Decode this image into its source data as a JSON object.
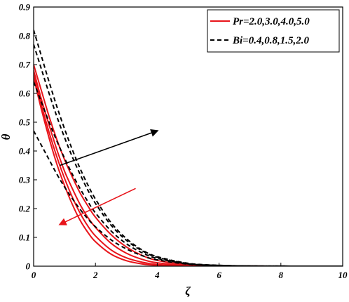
{
  "chart_data": {
    "type": "line",
    "title": "",
    "xlabel": "ζ",
    "ylabel": "θ",
    "xlim": [
      0,
      10
    ],
    "ylim": [
      0,
      0.9
    ],
    "x_ticks": [
      "0",
      "2",
      "4",
      "6",
      "8",
      "10"
    ],
    "y_ticks": [
      "0",
      "0.1",
      "0.2",
      "0.3",
      "0.4",
      "0.5",
      "0.6",
      "0.7",
      "0.8",
      "0.9"
    ],
    "grid": false,
    "legend": {
      "position": "top-right",
      "entries": [
        {
          "label": "Pr=2.0,3.0,4.0,5.0",
          "style": "solid",
          "color": "#e8141a"
        },
        {
          "label": "Bi=0.4,0.8,1.5,2.0",
          "style": "dashed",
          "color": "#000000"
        }
      ]
    },
    "x": [
      0,
      0.25,
      0.5,
      0.75,
      1,
      1.25,
      1.5,
      1.75,
      2,
      2.5,
      3,
      3.5,
      4,
      5,
      6,
      7,
      8,
      10
    ],
    "series": [
      {
        "group": "Pr",
        "param": "2.0",
        "style": "solid",
        "color": "#e8141a",
        "values": [
          0.7,
          0.61,
          0.52,
          0.44,
          0.37,
          0.31,
          0.255,
          0.21,
          0.17,
          0.11,
          0.067,
          0.038,
          0.02,
          0.005,
          0.0012,
          0.0003,
          0.0001,
          0
        ]
      },
      {
        "group": "Pr",
        "param": "3.0",
        "style": "solid",
        "color": "#e8141a",
        "values": [
          0.68,
          0.58,
          0.49,
          0.405,
          0.33,
          0.27,
          0.215,
          0.17,
          0.135,
          0.08,
          0.045,
          0.024,
          0.012,
          0.0025,
          0.0005,
          0.0001,
          0,
          0
        ]
      },
      {
        "group": "Pr",
        "param": "4.0",
        "style": "solid",
        "color": "#e8141a",
        "values": [
          0.665,
          0.56,
          0.465,
          0.38,
          0.305,
          0.24,
          0.185,
          0.14,
          0.105,
          0.057,
          0.029,
          0.014,
          0.006,
          0.001,
          0.0002,
          0,
          0,
          0
        ]
      },
      {
        "group": "Pr",
        "param": "5.0",
        "style": "solid",
        "color": "#e8141a",
        "values": [
          0.655,
          0.545,
          0.445,
          0.355,
          0.28,
          0.215,
          0.16,
          0.118,
          0.085,
          0.042,
          0.019,
          0.008,
          0.003,
          0.0005,
          0,
          0,
          0,
          0
        ]
      },
      {
        "group": "Bi",
        "param": "0.4",
        "style": "dashed",
        "color": "#000000",
        "values": [
          0.47,
          0.42,
          0.37,
          0.32,
          0.275,
          0.235,
          0.198,
          0.165,
          0.137,
          0.092,
          0.06,
          0.037,
          0.022,
          0.007,
          0.002,
          0.0006,
          0.0002,
          0
        ]
      },
      {
        "group": "Bi",
        "param": "0.8",
        "style": "dashed",
        "color": "#000000",
        "values": [
          0.64,
          0.57,
          0.5,
          0.435,
          0.375,
          0.32,
          0.27,
          0.225,
          0.185,
          0.123,
          0.078,
          0.047,
          0.027,
          0.008,
          0.0025,
          0.0007,
          0.0002,
          0
        ]
      },
      {
        "group": "Bi",
        "param": "1.5",
        "style": "dashed",
        "color": "#000000",
        "values": [
          0.77,
          0.685,
          0.6,
          0.52,
          0.447,
          0.38,
          0.32,
          0.265,
          0.218,
          0.143,
          0.09,
          0.054,
          0.031,
          0.009,
          0.0027,
          0.0008,
          0.0002,
          0
        ]
      },
      {
        "group": "Bi",
        "param": "2.0",
        "style": "dashed",
        "color": "#000000",
        "values": [
          0.82,
          0.73,
          0.64,
          0.555,
          0.477,
          0.405,
          0.34,
          0.283,
          0.233,
          0.152,
          0.096,
          0.057,
          0.033,
          0.01,
          0.003,
          0.0008,
          0.0002,
          0
        ]
      }
    ],
    "annotations": [
      {
        "type": "arrow",
        "color": "#000000",
        "meaning": "Bi increasing",
        "from": [
          0.85,
          0.35
        ],
        "to": [
          4.0,
          0.47
        ]
      },
      {
        "type": "arrow",
        "color": "#e8141a",
        "meaning": "Pr increasing",
        "from": [
          3.3,
          0.27
        ],
        "to": [
          0.85,
          0.145
        ]
      }
    ]
  }
}
